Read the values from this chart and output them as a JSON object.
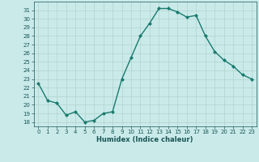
{
  "xlabel": "Humidex (Indice chaleur)",
  "x": [
    0,
    1,
    2,
    3,
    4,
    5,
    6,
    7,
    8,
    9,
    10,
    11,
    12,
    13,
    14,
    15,
    16,
    17,
    18,
    19,
    20,
    21,
    22,
    23
  ],
  "y": [
    22.5,
    20.5,
    20.2,
    18.8,
    19.2,
    18.0,
    18.2,
    19.0,
    19.2,
    23.0,
    25.5,
    28.0,
    29.5,
    31.2,
    31.2,
    30.8,
    30.2,
    30.4,
    28.0,
    26.2,
    25.2,
    24.5,
    23.5,
    23.0
  ],
  "line_color": "#1a7a6e",
  "marker": "D",
  "marker_size": 2.0,
  "bg_color": "#caeaea",
  "grid_color": "#b0d4cc",
  "tick_label_color": "#1a5555",
  "axis_label_color": "#1a5555",
  "ylim": [
    17.5,
    32.0
  ],
  "xlim": [
    -0.5,
    23.5
  ],
  "yticks": [
    18,
    19,
    20,
    21,
    22,
    23,
    24,
    25,
    26,
    27,
    28,
    29,
    30,
    31
  ],
  "xticks": [
    0,
    1,
    2,
    3,
    4,
    5,
    6,
    7,
    8,
    9,
    10,
    11,
    12,
    13,
    14,
    15,
    16,
    17,
    18,
    19,
    20,
    21,
    22,
    23
  ],
  "linewidth": 1.0,
  "marker_facecolor": "#1a7a6e",
  "marker_edgecolor": "#1a7a6e",
  "tick_fontsize": 5.0,
  "xlabel_fontsize": 6.0
}
